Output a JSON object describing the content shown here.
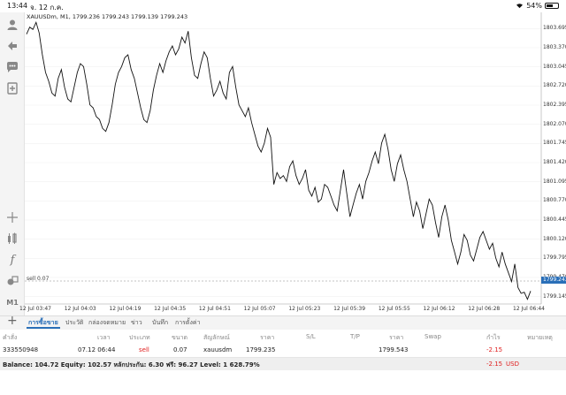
{
  "status": {
    "time": "13:44",
    "date": "จ. 12 ก.ค.",
    "battery": "54%"
  },
  "chart": {
    "title": "XAUUSDm, M1, 1799.236 1799.243 1799.139 1799.243",
    "order_line_label": "sell 0.07",
    "current_price": "1799.243",
    "accent": "#2a6fb8"
  },
  "chart_data": {
    "type": "line",
    "symbol": "XAUUSDm",
    "timeframe": "M1",
    "y_ticks": [
      "1803.695",
      "1803.370",
      "1803.045",
      "1802.720",
      "1802.395",
      "1802.070",
      "1801.745",
      "1801.420",
      "1801.095",
      "1800.770",
      "1800.445",
      "1800.120",
      "1799.795",
      "1799.470",
      "1799.145"
    ],
    "x_ticks": [
      "12 Jul 03:47",
      "12 Jul 04:03",
      "12 Jul 04:19",
      "12 Jul 04:35",
      "12 Jul 04:51",
      "12 Jul 05:07",
      "12 Jul 05:23",
      "12 Jul 05:39",
      "12 Jul 05:55",
      "12 Jul 06:12",
      "12 Jul 06:28",
      "12 Jul 06:44"
    ],
    "ylim": [
      1799.08,
      1803.85
    ],
    "values": [
      1803.6,
      1803.72,
      1803.68,
      1803.8,
      1803.62,
      1803.25,
      1802.95,
      1802.8,
      1802.6,
      1802.55,
      1802.85,
      1803.0,
      1802.7,
      1802.5,
      1802.45,
      1802.7,
      1802.95,
      1803.1,
      1803.05,
      1802.75,
      1802.4,
      1802.35,
      1802.2,
      1802.15,
      1802.0,
      1801.95,
      1802.1,
      1802.4,
      1802.75,
      1802.95,
      1803.05,
      1803.2,
      1803.25,
      1803.0,
      1802.85,
      1802.6,
      1802.35,
      1802.15,
      1802.1,
      1802.3,
      1802.65,
      1802.9,
      1803.1,
      1802.95,
      1803.15,
      1803.3,
      1803.4,
      1803.25,
      1803.35,
      1803.55,
      1803.45,
      1803.65,
      1803.2,
      1802.9,
      1802.85,
      1803.1,
      1803.3,
      1803.2,
      1802.85,
      1802.55,
      1802.65,
      1802.8,
      1802.6,
      1802.5,
      1802.95,
      1803.05,
      1802.7,
      1802.4,
      1802.3,
      1802.2,
      1802.35,
      1802.1,
      1801.9,
      1801.7,
      1801.6,
      1801.75,
      1802.0,
      1801.85,
      1801.05,
      1801.25,
      1801.15,
      1801.2,
      1801.1,
      1801.35,
      1801.45,
      1801.2,
      1801.05,
      1801.15,
      1801.3,
      1800.95,
      1800.85,
      1801.0,
      1800.75,
      1800.8,
      1801.05,
      1801.0,
      1800.85,
      1800.7,
      1800.6,
      1800.95,
      1801.3,
      1800.9,
      1800.5,
      1800.7,
      1800.9,
      1801.05,
      1800.8,
      1801.1,
      1801.25,
      1801.45,
      1801.6,
      1801.4,
      1801.75,
      1801.9,
      1801.65,
      1801.3,
      1801.1,
      1801.4,
      1801.55,
      1801.3,
      1801.1,
      1800.8,
      1800.5,
      1800.75,
      1800.6,
      1800.3,
      1800.55,
      1800.8,
      1800.7,
      1800.4,
      1800.15,
      1800.5,
      1800.7,
      1800.45,
      1800.1,
      1799.9,
      1799.7,
      1799.9,
      1800.2,
      1800.1,
      1799.85,
      1799.75,
      1799.95,
      1800.15,
      1800.25,
      1800.1,
      1799.95,
      1800.05,
      1799.8,
      1799.65,
      1799.9,
      1799.7,
      1799.55,
      1799.4,
      1799.7,
      1799.3,
      1799.2,
      1799.22,
      1799.1,
      1799.24
    ],
    "annotations": [
      "sell 0.07"
    ]
  },
  "tabs": [
    {
      "label": "การซื้อขาย",
      "active": true
    },
    {
      "label": "ประวัติ",
      "active": false
    },
    {
      "label": "กล่องจดหมาย",
      "active": false
    },
    {
      "label": "ข่าว",
      "active": false
    },
    {
      "label": "บันทึก",
      "active": false
    },
    {
      "label": "การตั้งค่า",
      "active": false
    }
  ],
  "table": {
    "headers": [
      "คำสั่ง",
      "เวลา",
      "ประเภท",
      "ขนาด",
      "สัญลักษณ์",
      "ราคา",
      "S/L",
      "T/P",
      "ราคา",
      "Swap",
      "กำไร",
      "หมายเหตุ"
    ],
    "row": {
      "order": "333550948",
      "time": "07.12 06:44",
      "type": "sell",
      "size": "0.07",
      "symbol": "xauusdm",
      "open_price": "1799.235",
      "current_price": "1799.543",
      "profit": "-2.15"
    }
  },
  "balance": {
    "text": "Balance: 104.72 Equity: 102.57 หลักประกัน: 6.30 ฟรี: 96.27 Level: 1 628.79%",
    "profit": "-2.15",
    "currency": "USD"
  },
  "icons": [
    "user-icon",
    "buy-sell-icon",
    "chat-icon",
    "add-document-icon",
    "crosshair-icon",
    "indicators-icon",
    "function-icon",
    "objects-icon",
    "timeframe-icon"
  ]
}
